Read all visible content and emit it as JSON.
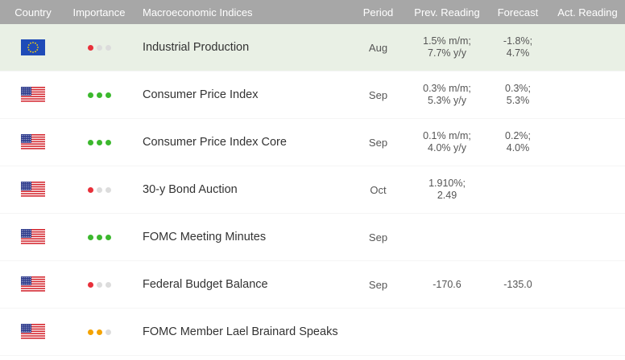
{
  "header": {
    "country": "Country",
    "importance": "Importance",
    "indices": "Macroeconomic Indices",
    "period": "Period",
    "prev": "Prev. Reading",
    "forecast": "Forecast",
    "actual": "Act. Reading"
  },
  "colors": {
    "header_bg": "#a7a7a7",
    "highlight_row": "#e9f0e5",
    "dot_red": "#e8303a",
    "dot_green": "#3cb82e",
    "dot_orange": "#f4a300",
    "dot_gray": "#dcdcdc"
  },
  "rows": [
    {
      "country_flag": "eu-flag-icon",
      "importance": {
        "level": 1,
        "color": "red"
      },
      "name": "Industrial Production",
      "period": "Aug",
      "prev": [
        "1.5% m/m;",
        "7.7% y/y"
      ],
      "forecast": [
        "-1.8%;",
        "4.7%"
      ],
      "actual": ""
    },
    {
      "country_flag": "us-flag-icon",
      "importance": {
        "level": 3,
        "color": "green"
      },
      "name": "Consumer Price Index",
      "period": "Sep",
      "prev": [
        "0.3% m/m;",
        "5.3% y/y"
      ],
      "forecast": [
        "0.3%;",
        "5.3%"
      ],
      "actual": ""
    },
    {
      "country_flag": "us-flag-icon",
      "importance": {
        "level": 3,
        "color": "green"
      },
      "name": "Consumer Price Index Core",
      "period": "Sep",
      "prev": [
        "0.1% m/m;",
        "4.0% y/y"
      ],
      "forecast": [
        "0.2%;",
        "4.0%"
      ],
      "actual": ""
    },
    {
      "country_flag": "us-flag-icon",
      "importance": {
        "level": 1,
        "color": "red"
      },
      "name": "30-y Bond Auction",
      "period": "Oct",
      "prev": [
        "1.910%;",
        "2.49"
      ],
      "forecast": [
        "",
        ""
      ],
      "actual": ""
    },
    {
      "country_flag": "us-flag-icon",
      "importance": {
        "level": 3,
        "color": "green"
      },
      "name": "FOMC Meeting Minutes",
      "period": "Sep",
      "prev": [
        "",
        ""
      ],
      "forecast": [
        "",
        ""
      ],
      "actual": ""
    },
    {
      "country_flag": "us-flag-icon",
      "importance": {
        "level": 1,
        "color": "red"
      },
      "name": "Federal Budget Balance",
      "period": "Sep",
      "prev": [
        "-170.6",
        ""
      ],
      "forecast": [
        "-135.0",
        ""
      ],
      "actual": ""
    },
    {
      "country_flag": "us-flag-icon",
      "importance": {
        "level": 2,
        "color": "orange"
      },
      "name": "FOMC Member Lael Brainard Speaks",
      "period": "",
      "prev": [
        "",
        ""
      ],
      "forecast": [
        "",
        ""
      ],
      "actual": ""
    }
  ]
}
